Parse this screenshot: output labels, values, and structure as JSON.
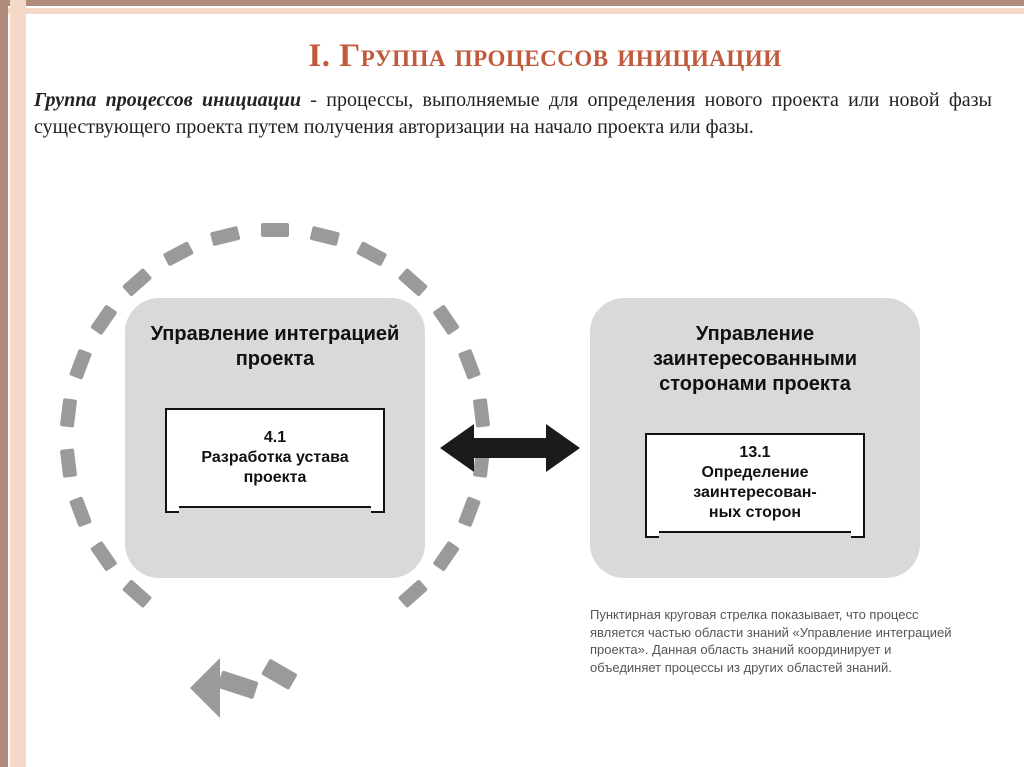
{
  "colors": {
    "title": "#c05a3a",
    "frame_dark": "#b08a7a",
    "frame_light": "#f4d9c9",
    "node_bg": "#d9d9d9",
    "arrow": "#1a1a1a",
    "dash": "#9a9a9a",
    "text": "#222222",
    "note": "#555555"
  },
  "title": "I. Группа процессов инициации",
  "definition_bold": "Группа процессов инициации",
  "definition_rest": " - процессы, выполняемые для определения нового проекта или новой фазы существующего проекта путем получения авторизации на начало проекта или фазы.",
  "left_node": {
    "title": "Управление интеграцией проекта",
    "box_code": "4.1",
    "box_label": "Разработка устава проекта"
  },
  "right_node": {
    "title": "Управление заинтересованными сторонами проекта",
    "box_code": "13.1",
    "box_label": "Определение заинтересован-\nных сторон"
  },
  "note": "Пунктирная круговая стрелка показывает, что процесс является частью области знаний «Управление интеграцией проекта». Данная область знаний координирует и объединяет процессы из других областей знаний.",
  "diagram_style": {
    "dash_count": 26,
    "dash_width": 28,
    "dash_height": 14,
    "ring_radius": 208,
    "arrow_head_size": 28
  }
}
